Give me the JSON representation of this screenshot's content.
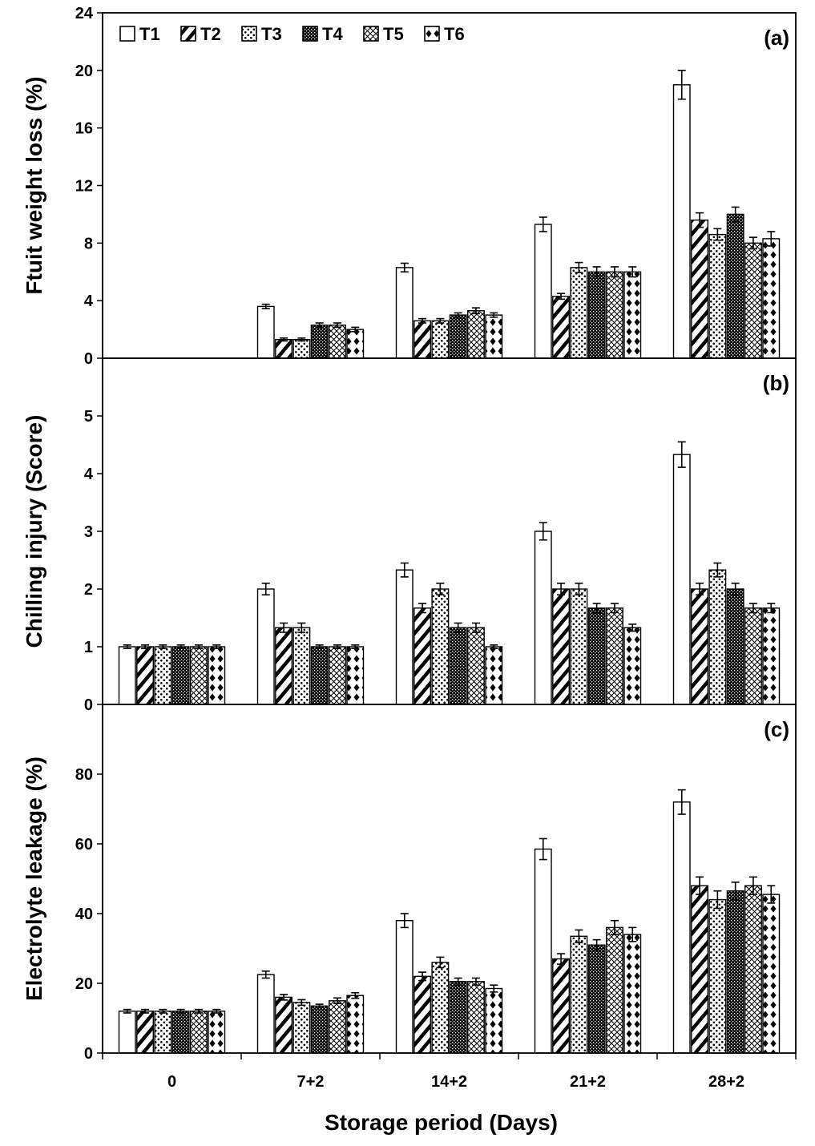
{
  "chart_data": {
    "type": "bar",
    "xlabel": "Storage period (Days)",
    "categories": [
      "0",
      "7+2",
      "14+2",
      "21+2",
      "28+2"
    ],
    "legend": {
      "placement": "top-left",
      "entries": [
        "T1",
        "T2",
        "T3",
        "T4",
        "T5",
        "T6"
      ]
    },
    "series_styles": {
      "T1": "white",
      "T2": "diagonal-hatch",
      "T3": "dots",
      "T4": "dense-dark",
      "T5": "crosshatch",
      "T6": "diamonds"
    },
    "panels": [
      {
        "label": "(a)",
        "ylabel": "Ftuit weight loss (%)",
        "ylim": [
          0,
          24
        ],
        "yticks": [
          0,
          4,
          8,
          12,
          16,
          20,
          24
        ],
        "series": [
          {
            "name": "T1",
            "values": [
              0,
              3.6,
              6.3,
              9.3,
              19.0
            ],
            "errors": [
              0,
              0.15,
              0.3,
              0.5,
              1.0
            ]
          },
          {
            "name": "T2",
            "values": [
              0,
              1.3,
              2.6,
              4.3,
              9.6
            ],
            "errors": [
              0,
              0.1,
              0.15,
              0.2,
              0.5
            ]
          },
          {
            "name": "T3",
            "values": [
              0,
              1.3,
              2.6,
              6.3,
              8.6
            ],
            "errors": [
              0,
              0.1,
              0.15,
              0.35,
              0.4
            ]
          },
          {
            "name": "T4",
            "values": [
              0,
              2.3,
              3.0,
              6.0,
              10.0
            ],
            "errors": [
              0,
              0.15,
              0.15,
              0.35,
              0.5
            ]
          },
          {
            "name": "T5",
            "values": [
              0,
              2.3,
              3.3,
              6.0,
              8.0
            ],
            "errors": [
              0,
              0.15,
              0.2,
              0.35,
              0.4
            ]
          },
          {
            "name": "T6",
            "values": [
              0,
              2.0,
              3.0,
              6.0,
              8.3
            ],
            "errors": [
              0,
              0.15,
              0.15,
              0.35,
              0.5
            ]
          }
        ]
      },
      {
        "label": "(b)",
        "ylabel": "Chilling injury (Score)",
        "ylim": [
          0,
          6
        ],
        "yticks": [
          0,
          1,
          2,
          3,
          4,
          5
        ],
        "series": [
          {
            "name": "T1",
            "values": [
              1,
              2.0,
              2.33,
              3.0,
              4.33
            ],
            "errors": [
              0.03,
              0.1,
              0.12,
              0.15,
              0.22
            ]
          },
          {
            "name": "T2",
            "values": [
              1,
              1.33,
              1.67,
              2.0,
              2.0
            ],
            "errors": [
              0.03,
              0.08,
              0.08,
              0.1,
              0.1
            ]
          },
          {
            "name": "T3",
            "values": [
              1,
              1.33,
              2.0,
              2.0,
              2.33
            ],
            "errors": [
              0.03,
              0.08,
              0.1,
              0.1,
              0.12
            ]
          },
          {
            "name": "T4",
            "values": [
              1,
              1.0,
              1.33,
              1.67,
              2.0
            ],
            "errors": [
              0.03,
              0.03,
              0.08,
              0.08,
              0.1
            ]
          },
          {
            "name": "T5",
            "values": [
              1,
              1.0,
              1.33,
              1.67,
              1.67
            ],
            "errors": [
              0.03,
              0.03,
              0.08,
              0.08,
              0.08
            ]
          },
          {
            "name": "T6",
            "values": [
              1,
              1.0,
              1.0,
              1.33,
              1.67
            ],
            "errors": [
              0.03,
              0.03,
              0.03,
              0.06,
              0.08
            ]
          }
        ]
      },
      {
        "label": "(c)",
        "ylabel": "Electrolyte leakage (%)",
        "ylim": [
          0,
          100
        ],
        "yticks": [
          0,
          20,
          40,
          60,
          80
        ],
        "series": [
          {
            "name": "T1",
            "values": [
              12,
              22.5,
              38,
              58.5,
              72
            ],
            "errors": [
              0.5,
              1.0,
              2.0,
              3.0,
              3.5
            ]
          },
          {
            "name": "T2",
            "values": [
              12,
              16,
              22,
              27,
              48
            ],
            "errors": [
              0.5,
              0.8,
              1.2,
              1.5,
              2.5
            ]
          },
          {
            "name": "T3",
            "values": [
              12,
              14.5,
              26,
              33.5,
              44
            ],
            "errors": [
              0.5,
              0.8,
              1.5,
              1.8,
              2.5
            ]
          },
          {
            "name": "T4",
            "values": [
              12,
              13.5,
              20.5,
              31,
              46.5
            ],
            "errors": [
              0.5,
              0.5,
              1.0,
              1.5,
              2.5
            ]
          },
          {
            "name": "T5",
            "values": [
              12,
              15,
              20.5,
              36,
              48
            ],
            "errors": [
              0.5,
              0.8,
              1.0,
              2.0,
              2.5
            ]
          },
          {
            "name": "T6",
            "values": [
              12,
              16.5,
              18.5,
              34,
              45.5
            ],
            "errors": [
              0.5,
              0.8,
              1.0,
              2.0,
              2.5
            ]
          }
        ]
      }
    ]
  }
}
